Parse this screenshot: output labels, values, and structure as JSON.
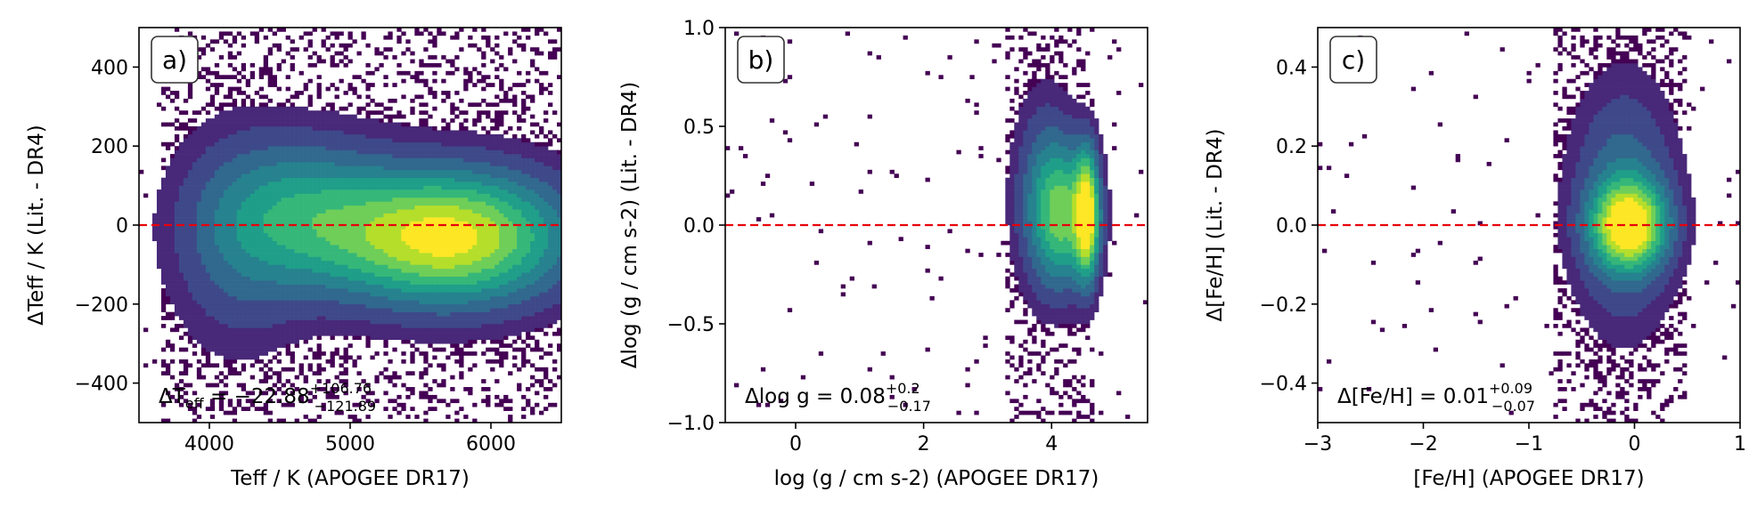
{
  "chart_data": [
    {
      "type": "heatmap",
      "panel_label": "a)",
      "xlabel": "Teff / K (APOGEE DR17)",
      "ylabel": "ΔTeff / K (Lit. - DR4)",
      "xlim": [
        3500,
        6500
      ],
      "ylim": [
        -500,
        500
      ],
      "xticks": [
        4000,
        5000,
        6000
      ],
      "xtick_labels": [
        "4000",
        "5000",
        "6000"
      ],
      "yticks": [
        -400,
        -200,
        0,
        200,
        400
      ],
      "ytick_labels": [
        "−400",
        "−200",
        "0",
        "200",
        "400"
      ],
      "reference_line": {
        "y": 0,
        "color": "#e8000b",
        "style": "dashed"
      },
      "annotation": {
        "prefix": "ΔT",
        "sub": "eff",
        "eq": " = −22.88",
        "sup": "+106.76",
        "inf": "−121.89"
      },
      "density_blobs": [
        {
          "x": 5700,
          "y": -30,
          "sx": 520,
          "sy": 105,
          "w": 1.0
        },
        {
          "x": 4700,
          "y": 20,
          "sx": 420,
          "sy": 120,
          "w": 0.45
        },
        {
          "x": 4200,
          "y": -40,
          "sx": 300,
          "sy": 170,
          "w": 0.18
        }
      ],
      "halo": {
        "xr": [
          3650,
          6500
        ],
        "yr": [
          -500,
          500
        ]
      }
    },
    {
      "type": "heatmap",
      "panel_label": "b)",
      "xlabel": "log (g / cm s-2) (APOGEE DR17)",
      "ylabel": "Δlog (g / cm s-2) (Lit. - DR4)",
      "xlim": [
        -1.1,
        5.5
      ],
      "ylim": [
        -1.0,
        1.0
      ],
      "xticks": [
        0,
        2,
        4
      ],
      "xtick_labels": [
        "0",
        "2",
        "4"
      ],
      "yticks": [
        -1.0,
        -0.5,
        0.0,
        0.5,
        1.0
      ],
      "ytick_labels": [
        "−1.0",
        "−0.5",
        "0.0",
        "0.5",
        "1.0"
      ],
      "reference_line": {
        "y": 0,
        "color": "#e8000b",
        "style": "dashed"
      },
      "annotation": {
        "prefix": "Δlog g",
        "sub": "",
        "eq": " = 0.08",
        "sup": "+0.2",
        "inf": "−0.17"
      },
      "density_blobs": [
        {
          "x": 4.55,
          "y": 0.05,
          "sx": 0.12,
          "sy": 0.2,
          "w": 1.0
        },
        {
          "x": 4.2,
          "y": 0.05,
          "sx": 0.3,
          "sy": 0.22,
          "w": 0.6
        },
        {
          "x": 3.9,
          "y": 0.15,
          "sx": 0.3,
          "sy": 0.3,
          "w": 0.25
        }
      ],
      "halo": {
        "xr": [
          3.3,
          4.7
        ],
        "yr": [
          -1.0,
          1.0
        ]
      }
    },
    {
      "type": "heatmap",
      "panel_label": "c)",
      "xlabel": "[Fe/H] (APOGEE DR17)",
      "ylabel": "Δ[Fe/H] (Lit. - DR4)",
      "xlim": [
        -3,
        1
      ],
      "ylim": [
        -0.5,
        0.5
      ],
      "xticks": [
        -3,
        -2,
        -1,
        0,
        1
      ],
      "xtick_labels": [
        "−3",
        "−2",
        "−1",
        "0",
        "1"
      ],
      "yticks": [
        -0.4,
        -0.2,
        0.0,
        0.2,
        0.4
      ],
      "ytick_labels": [
        "−0.4",
        "−0.2",
        "0.0",
        "0.2",
        "0.4"
      ],
      "reference_line": {
        "y": 0,
        "color": "#e8000b",
        "style": "dashed"
      },
      "annotation": {
        "prefix": "Δ[Fe/H]",
        "sub": "",
        "eq": " = 0.01",
        "sup": "+0.09",
        "inf": "−0.07"
      },
      "density_blobs": [
        {
          "x": -0.05,
          "y": 0.0,
          "sx": 0.22,
          "sy": 0.07,
          "w": 1.0
        },
        {
          "x": -0.1,
          "y": 0.05,
          "sx": 0.3,
          "sy": 0.18,
          "w": 0.3
        }
      ],
      "halo": {
        "xr": [
          -0.75,
          0.5
        ],
        "yr": [
          -0.5,
          0.5
        ]
      }
    }
  ]
}
